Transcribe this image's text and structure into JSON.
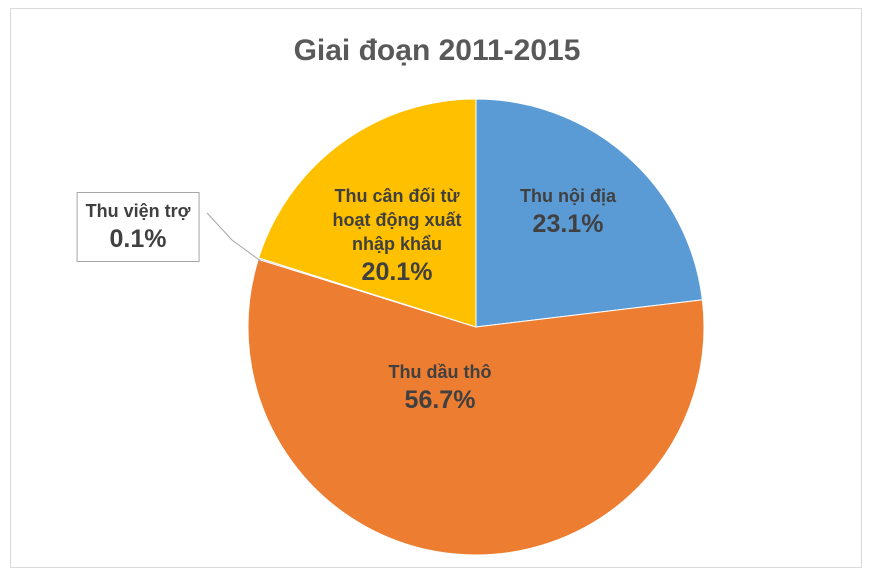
{
  "chart_data": {
    "type": "pie",
    "title": "Giai đoạn 2011-2015",
    "categories": [
      "Thu nội địa",
      "Thu dầu thô",
      "Thu viện trợ",
      "Thu cân đối từ hoạt động xuất nhập khẩu"
    ],
    "values": [
      23.1,
      56.7,
      0.1,
      20.1
    ],
    "value_labels": [
      "23.1%",
      "56.7%",
      "0.1%",
      "20.1%"
    ],
    "colors": [
      "#5b9bd5",
      "#ed7d31",
      "#a5a5a5",
      "#ffc000"
    ]
  }
}
